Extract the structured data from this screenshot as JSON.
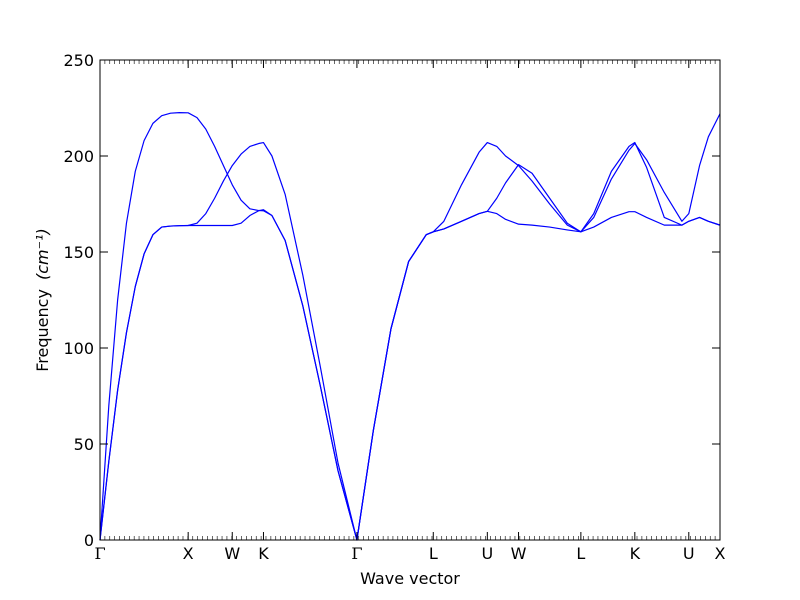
{
  "chart_data": {
    "type": "line",
    "title": "",
    "xlabel": "Wave vector",
    "ylabel": "Frequency",
    "ylabel_unit": "(cm⁻¹)",
    "ylim": [
      0,
      250
    ],
    "y_ticks": [
      0,
      50,
      100,
      150,
      200,
      250
    ],
    "grid": false,
    "legend": "none",
    "line_color": "#0000ff",
    "x_high_symmetry_points": [
      {
        "label": "Γ",
        "x": 0
      },
      {
        "label": "X",
        "x": 1.0
      },
      {
        "label": "W",
        "x": 1.5
      },
      {
        "label": "K",
        "x": 1.854
      },
      {
        "label": "Γ",
        "x": 2.914
      },
      {
        "label": "L",
        "x": 3.78
      },
      {
        "label": "U",
        "x": 4.393
      },
      {
        "label": "W",
        "x": 4.747
      },
      {
        "label": "L",
        "x": 5.454
      },
      {
        "label": "K",
        "x": 6.066
      },
      {
        "label": "U",
        "x": 6.678
      },
      {
        "label": "X",
        "x": 7.032
      }
    ],
    "series": [
      {
        "x": [
          0,
          0.1,
          0.2,
          0.3,
          0.4,
          0.5,
          0.6,
          0.7,
          0.8,
          0.9,
          1.0,
          1.1,
          1.2,
          1.3,
          1.4,
          1.5,
          1.6,
          1.7,
          1.8,
          1.854,
          1.95,
          2.1,
          2.3,
          2.5,
          2.7,
          2.914,
          3.1,
          3.3,
          3.5,
          3.7,
          3.78,
          3.9,
          4.1,
          4.3,
          4.393,
          4.5,
          4.6,
          4.747,
          4.9,
          5.1,
          5.3,
          5.454,
          5.6,
          5.8,
          6.0,
          6.066,
          6.2,
          6.4,
          6.6,
          6.678,
          6.8,
          6.9,
          7.032
        ],
        "values": [
          0,
          41,
          78,
          108,
          132,
          149,
          159,
          163,
          163.5,
          163.7,
          163.8,
          163.8,
          163.8,
          163.8,
          163.8,
          163.8,
          165,
          169,
          171.5,
          172,
          169,
          156,
          122,
          80,
          36,
          0,
          57,
          110,
          145,
          159,
          160.5,
          162,
          166,
          170,
          171.2,
          170,
          167,
          164.5,
          164,
          163,
          161.5,
          160.5,
          163,
          168,
          171,
          171,
          168,
          164,
          164,
          166,
          168,
          166,
          164
        ]
      },
      {
        "x": [
          0,
          0.1,
          0.2,
          0.3,
          0.4,
          0.5,
          0.6,
          0.7,
          0.8,
          0.9,
          1.0,
          1.1,
          1.2,
          1.3,
          1.4,
          1.5,
          1.6,
          1.7,
          1.8,
          1.854,
          1.95,
          2.1,
          2.3,
          2.5,
          2.7,
          2.914,
          3.1,
          3.3,
          3.5,
          3.7,
          3.78,
          3.9,
          4.1,
          4.3,
          4.393,
          4.5,
          4.6,
          4.747,
          4.9,
          5.1,
          5.3,
          5.454,
          5.6,
          5.8,
          6.0,
          6.066,
          6.2,
          6.4,
          6.6,
          6.678,
          6.8,
          6.9,
          7.032
        ],
        "values": [
          0,
          41,
          78,
          108,
          132,
          149,
          159,
          163,
          163.5,
          163.7,
          163.8,
          165,
          170,
          178,
          187,
          195,
          201,
          205,
          206.5,
          207,
          200,
          180,
          138,
          90,
          40,
          0,
          57,
          110,
          145,
          159,
          160.5,
          166,
          185,
          202,
          207,
          205,
          200,
          195,
          187,
          175,
          164,
          160.5,
          170,
          192,
          205,
          207,
          194,
          168,
          164,
          166,
          168,
          166,
          164
        ]
      },
      {
        "x": [
          0,
          0.1,
          0.2,
          0.3,
          0.4,
          0.5,
          0.6,
          0.7,
          0.8,
          0.9,
          1.0,
          1.1,
          1.2,
          1.3,
          1.4,
          1.5,
          1.6,
          1.7,
          1.8,
          1.854,
          1.95,
          2.1,
          2.3,
          2.5,
          2.7,
          2.914,
          3.1,
          3.3,
          3.5,
          3.7,
          3.78,
          3.9,
          4.1,
          4.3,
          4.393,
          4.5,
          4.6,
          4.747,
          4.9,
          5.1,
          5.3,
          5.454,
          5.6,
          5.8,
          6.0,
          6.066,
          6.2,
          6.4,
          6.6,
          6.678,
          6.8,
          6.9,
          7.032
        ],
        "values": [
          0,
          70,
          125,
          165,
          192,
          208,
          217,
          221,
          222.3,
          222.6,
          222.5,
          220,
          214,
          205,
          195,
          185,
          177,
          172.5,
          171.6,
          171.5,
          169,
          156,
          122,
          80,
          36,
          0,
          57,
          110,
          145,
          159,
          160.5,
          162,
          166,
          170,
          171.2,
          178,
          186,
          195.5,
          191,
          178,
          165,
          160.5,
          168,
          188,
          203,
          206.5,
          198,
          181,
          166,
          170,
          195,
          210,
          222
        ]
      }
    ]
  }
}
